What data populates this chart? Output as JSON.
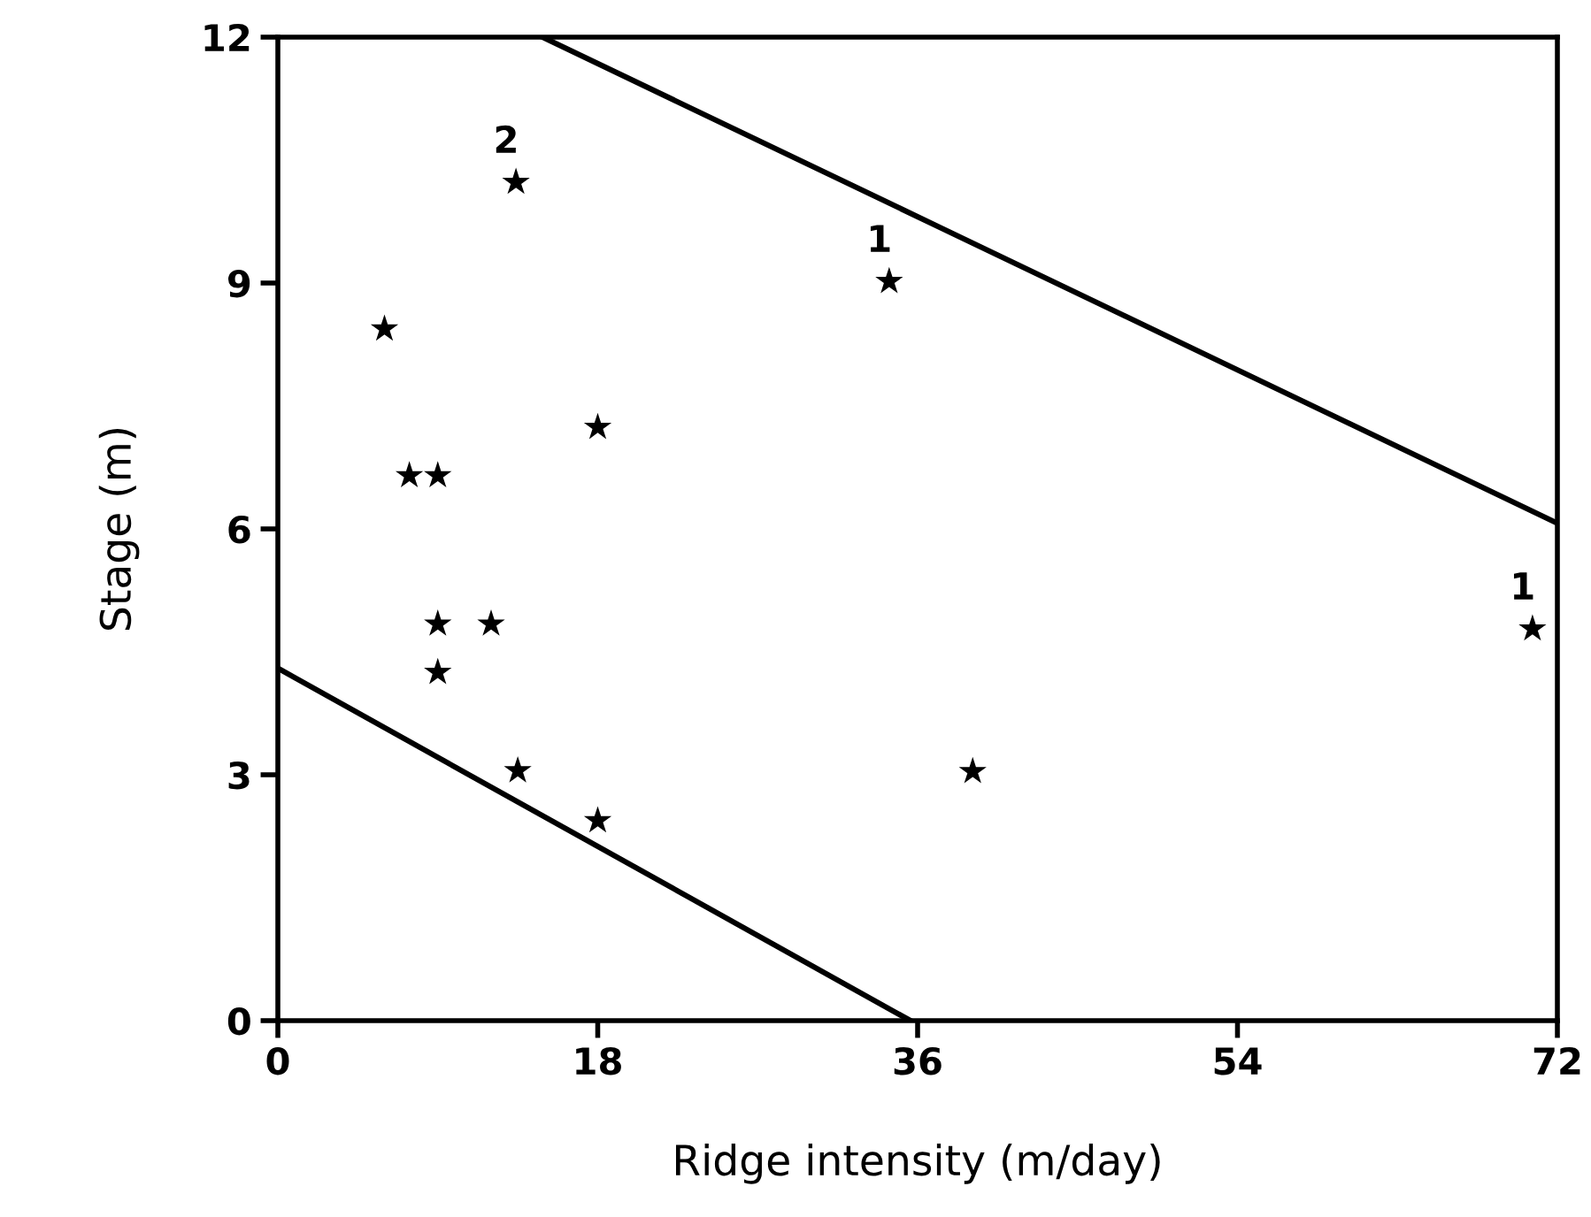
{
  "chart_data": {
    "type": "scatter",
    "xlabel": "Ridge intensity (m/day)",
    "ylabel": "Stage (m)",
    "xlim": [
      0,
      72
    ],
    "ylim": [
      0,
      12
    ],
    "xticks": [
      0,
      18,
      36,
      54,
      72
    ],
    "yticks": [
      0,
      3,
      6,
      9,
      12
    ],
    "grid": false,
    "legend": false,
    "marker": "star",
    "series": [
      {
        "color": "#000000",
        "x": [
          6,
          7.4,
          9,
          9,
          9,
          12,
          13.4,
          18,
          13.5,
          18,
          34.4,
          39.1,
          70.6
        ],
        "values": [
          8.44,
          6.65,
          6.65,
          4.84,
          4.25,
          4.84,
          10.23,
          7.24,
          3.05,
          2.44,
          9.02,
          3.04,
          4.78
        ]
      },
      {
        "type": "line",
        "color": "#000000",
        "marker": "none",
        "line_style": "solid",
        "x": [
          14.9,
          72
        ],
        "values": [
          12,
          6.07
        ]
      },
      {
        "type": "line",
        "color": "#000000",
        "marker": "none",
        "line_style": "solid",
        "x": [
          0,
          35.6
        ],
        "values": [
          4.3,
          0
        ]
      }
    ],
    "annotations": [
      {
        "text": "2",
        "x": 13.4,
        "y": 10.23
      },
      {
        "text": "1",
        "x": 34.4,
        "y": 9.02
      },
      {
        "text": "1",
        "x": 70.6,
        "y": 4.78
      }
    ]
  }
}
